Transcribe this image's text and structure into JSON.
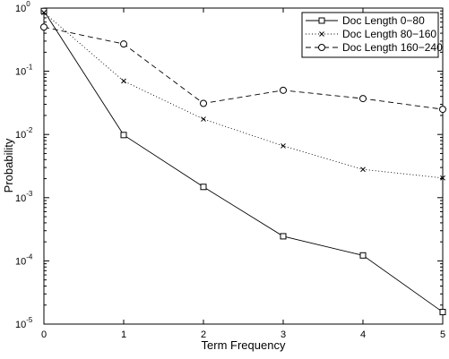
{
  "chart_data": {
    "type": "line",
    "xlabel": "Term Frequency",
    "ylabel": "Probability",
    "x": [
      0,
      1,
      2,
      3,
      4,
      5
    ],
    "xlim": [
      0,
      5
    ],
    "ylim": [
      1e-05,
      1
    ],
    "yscale": "log",
    "x_ticks": [
      "0",
      "1",
      "2",
      "3",
      "4",
      "5"
    ],
    "y_ticks": [
      {
        "value": 1,
        "mantissa": "10",
        "exponent": "0"
      },
      {
        "value": 0.1,
        "mantissa": "10",
        "exponent": "-1"
      },
      {
        "value": 0.01,
        "mantissa": "10",
        "exponent": "-2"
      },
      {
        "value": 0.001,
        "mantissa": "10",
        "exponent": "-3"
      },
      {
        "value": 0.0001,
        "mantissa": "10",
        "exponent": "-4"
      },
      {
        "value": 1e-05,
        "mantissa": "10",
        "exponent": "-5"
      }
    ],
    "grid": false,
    "legend_position": "top-right",
    "series": [
      {
        "name": "Doc Length 0−80",
        "marker": "square",
        "line": "solid",
        "values": [
          0.9,
          0.0098,
          0.00148,
          0.000245,
          0.000122,
          1.55e-05
        ]
      },
      {
        "name": "Doc Length 80−160",
        "marker": "x",
        "line": "dotted",
        "values": [
          0.85,
          0.07,
          0.0175,
          0.0066,
          0.0028,
          0.00205
        ]
      },
      {
        "name": "Doc Length 160−240",
        "marker": "circle",
        "line": "dashed",
        "values": [
          0.5,
          0.27,
          0.031,
          0.05,
          0.037,
          0.025
        ]
      }
    ]
  }
}
